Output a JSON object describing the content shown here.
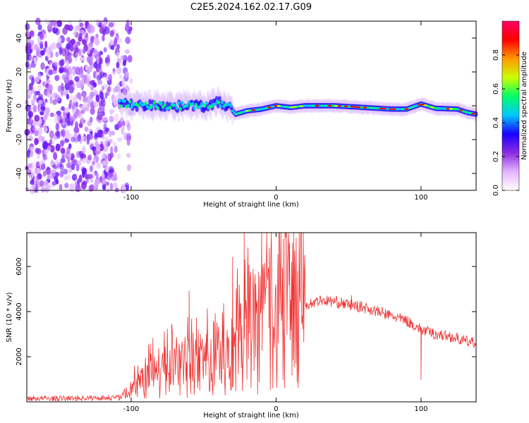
{
  "title": "C2E5.2024.162.02.17.G09",
  "chart_data": [
    {
      "type": "heatmap",
      "xlabel": "Height of straight line (km)",
      "ylabel": "Frequency (Hz)",
      "xlim": [
        -172,
        138
      ],
      "ylim": [
        -50,
        50
      ],
      "x_ticks": [
        -100,
        0,
        100
      ],
      "y_ticks": [
        -40,
        -20,
        0,
        20,
        40
      ],
      "colorbar": {
        "label": "Normalized spectral amplitude",
        "range": [
          0.0,
          1.0
        ],
        "ticks": [
          0.0,
          0.2,
          0.4,
          0.6,
          0.8
        ],
        "colormap": [
          "#ffffff",
          "#e3b3ff",
          "#8a2be2",
          "#1a00ff",
          "#00c8ff",
          "#00ff66",
          "#ccff00",
          "#ff9900",
          "#ff0000",
          "#ff0066"
        ]
      },
      "ridge": [
        {
          "x": -108,
          "y": 1.5
        },
        {
          "x": -95,
          "y": 0
        },
        {
          "x": -80,
          "y": 0.5
        },
        {
          "x": -70,
          "y": -1
        },
        {
          "x": -60,
          "y": 1
        },
        {
          "x": -50,
          "y": -0.5
        },
        {
          "x": -40,
          "y": 2
        },
        {
          "x": -32,
          "y": -1
        },
        {
          "x": -28,
          "y": -5
        },
        {
          "x": -20,
          "y": -3
        },
        {
          "x": -10,
          "y": -2
        },
        {
          "x": 0,
          "y": 0
        },
        {
          "x": 10,
          "y": -1
        },
        {
          "x": 20,
          "y": 0
        },
        {
          "x": 40,
          "y": 0
        },
        {
          "x": 60,
          "y": -1
        },
        {
          "x": 80,
          "y": -2
        },
        {
          "x": 90,
          "y": -2
        },
        {
          "x": 100,
          "y": 1
        },
        {
          "x": 110,
          "y": -1.5
        },
        {
          "x": 125,
          "y": -2
        },
        {
          "x": 132,
          "y": -4
        },
        {
          "x": 138,
          "y": -5
        }
      ]
    },
    {
      "type": "line",
      "xlabel": "Height of straight line (km)",
      "ylabel": "SNR (10 * v/v)",
      "xlim": [
        -172,
        138
      ],
      "ylim": [
        0,
        7500
      ],
      "x_ticks": [
        -100,
        0,
        100
      ],
      "y_ticks": [
        2000,
        4000,
        6000
      ],
      "color": "#f03030",
      "series": [
        {
          "x": [
            -172,
            -150,
            -120,
            -108,
            -100,
            -90,
            -80,
            -70,
            -60,
            -50,
            -40,
            -30,
            -20,
            -10,
            0,
            10,
            20,
            30,
            40,
            50,
            60,
            70,
            80,
            90,
            100,
            110,
            120,
            130,
            138
          ],
          "y": [
            150,
            150,
            180,
            200,
            600,
            1000,
            1300,
            1500,
            1700,
            1700,
            2000,
            2300,
            2800,
            3300,
            3800,
            4100,
            4300,
            4500,
            4450,
            4300,
            4200,
            4000,
            3800,
            3600,
            3200,
            3000,
            2900,
            2700,
            2600
          ]
        }
      ],
      "spikes": [
        {
          "x": -98,
          "y": 800
        },
        {
          "x": -85,
          "y": 2800
        },
        {
          "x": -72,
          "y": 3400
        },
        {
          "x": -60,
          "y": 4900
        },
        {
          "x": -55,
          "y": 3700
        },
        {
          "x": -42,
          "y": 3900
        },
        {
          "x": -30,
          "y": 6400
        },
        {
          "x": -22,
          "y": 7500
        },
        {
          "x": -14,
          "y": 5200
        },
        {
          "x": -5,
          "y": 3300
        },
        {
          "x": 5,
          "y": 7200
        },
        {
          "x": 11,
          "y": 1200
        },
        {
          "x": 52,
          "y": 4700
        },
        {
          "x": 100,
          "y": 1000
        }
      ]
    }
  ]
}
